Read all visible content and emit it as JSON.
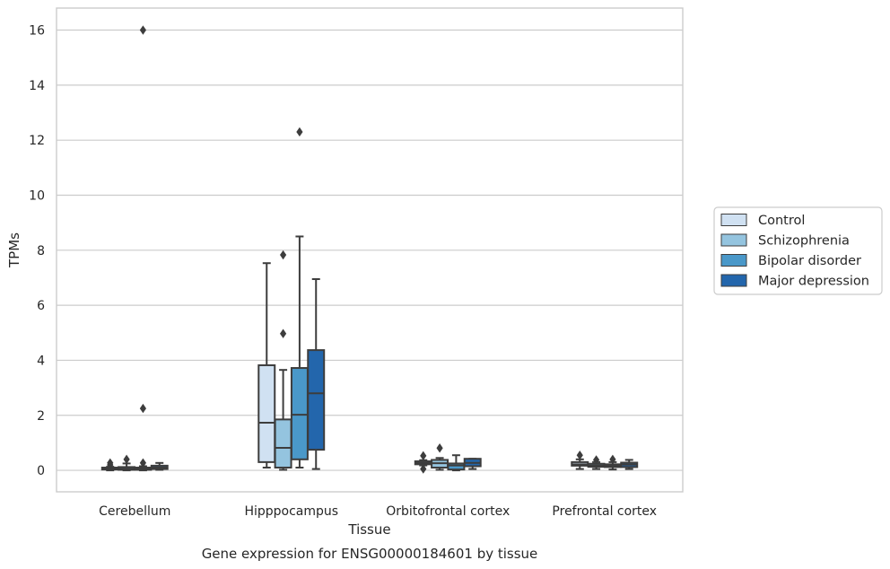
{
  "chart_data": {
    "type": "boxplot",
    "title": "",
    "caption": "Gene expression for ENSG00000184601 by tissue",
    "xlabel": "Tissue",
    "ylabel": "TPMs",
    "ylim": [
      -0.78,
      16.8
    ],
    "yticks": [
      0,
      2,
      4,
      6,
      8,
      10,
      12,
      14,
      16
    ],
    "grid": "horizontal",
    "legend_position": "right",
    "categories": [
      "Cerebellum",
      "Hipppocampus",
      "Orbitofrontal cortex",
      "Prefrontal cortex"
    ],
    "series": [
      {
        "name": "Control",
        "color": "#d0e1f2",
        "boxes": [
          {
            "whislo": 0.0,
            "q1": 0.03,
            "med": 0.06,
            "q3": 0.1,
            "whishi": 0.13,
            "fliers": [
              0.2,
              0.27
            ]
          },
          {
            "whislo": 0.1,
            "q1": 0.3,
            "med": 1.73,
            "q3": 3.82,
            "whishi": 7.53,
            "fliers": []
          },
          {
            "whislo": 0.18,
            "q1": 0.22,
            "med": 0.27,
            "q3": 0.33,
            "whishi": 0.37,
            "fliers": [
              0.05,
              0.53
            ]
          },
          {
            "whislo": 0.05,
            "q1": 0.17,
            "med": 0.22,
            "q3": 0.3,
            "whishi": 0.4,
            "fliers": [
              0.55
            ]
          }
        ]
      },
      {
        "name": "Schizophrenia",
        "color": "#94c4df",
        "boxes": [
          {
            "whislo": 0.0,
            "q1": 0.02,
            "med": 0.06,
            "q3": 0.12,
            "whishi": 0.25,
            "fliers": [
              0.4
            ]
          },
          {
            "whislo": 0.02,
            "q1": 0.1,
            "med": 0.82,
            "q3": 1.85,
            "whishi": 3.65,
            "fliers": [
              4.97,
              7.83
            ]
          },
          {
            "whislo": 0.02,
            "q1": 0.1,
            "med": 0.26,
            "q3": 0.38,
            "whishi": 0.45,
            "fliers": [
              0.81
            ]
          },
          {
            "whislo": 0.05,
            "q1": 0.13,
            "med": 0.18,
            "q3": 0.24,
            "whishi": 0.3,
            "fliers": [
              0.38
            ]
          }
        ]
      },
      {
        "name": "Bipolar disorder",
        "color": "#4a98c9",
        "boxes": [
          {
            "whislo": 0.0,
            "q1": 0.02,
            "med": 0.05,
            "q3": 0.1,
            "whishi": 0.15,
            "fliers": [
              0.27,
              2.25,
              16.0
            ]
          },
          {
            "whislo": 0.1,
            "q1": 0.4,
            "med": 2.02,
            "q3": 3.72,
            "whishi": 8.5,
            "fliers": [
              12.3
            ]
          },
          {
            "whislo": 0.0,
            "q1": 0.03,
            "med": 0.18,
            "q3": 0.25,
            "whishi": 0.55,
            "fliers": []
          },
          {
            "whislo": 0.03,
            "q1": 0.12,
            "med": 0.17,
            "q3": 0.22,
            "whishi": 0.3,
            "fliers": [
              0.4
            ]
          }
        ]
      },
      {
        "name": "Major depression",
        "color": "#2366ac",
        "boxes": [
          {
            "whislo": 0.02,
            "q1": 0.05,
            "med": 0.1,
            "q3": 0.17,
            "whishi": 0.27,
            "fliers": []
          },
          {
            "whislo": 0.05,
            "q1": 0.75,
            "med": 2.8,
            "q3": 4.37,
            "whishi": 6.95,
            "fliers": []
          },
          {
            "whislo": 0.05,
            "q1": 0.15,
            "med": 0.27,
            "q3": 0.42,
            "whishi": 0.42,
            "fliers": []
          },
          {
            "whislo": 0.05,
            "q1": 0.12,
            "med": 0.21,
            "q3": 0.28,
            "whishi": 0.38,
            "fliers": []
          }
        ]
      }
    ]
  }
}
